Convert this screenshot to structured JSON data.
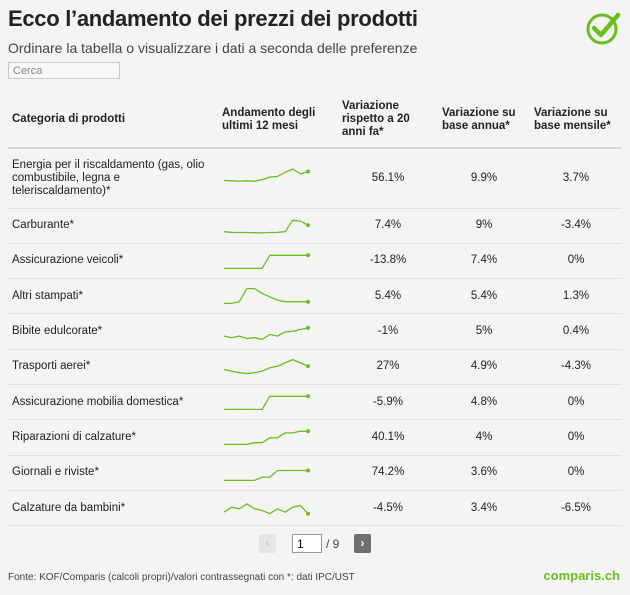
{
  "header": {
    "title": "Ecco l’andamento dei prezzi dei prodotti",
    "subtitle": "Ordinare la tabella o visualizzare i dati a seconda delle preferenze"
  },
  "search": {
    "placeholder": "Cerca",
    "value": ""
  },
  "table": {
    "columns": [
      "Categoria di prodotti",
      "Andamento degli ultimi 12 mesi",
      "Variazione rispetto a 20 anni fa*",
      "Variazione su base annua*",
      "Variazione su base mensile*"
    ],
    "rows": [
      {
        "category": "Energia per il riscaldamento (gas, olio combustibile, legna e teleriscaldamento)*",
        "var20": "56.1%",
        "yearly": "9.9%",
        "monthly": "3.7%",
        "trend": [
          4,
          3.8,
          3.6,
          3.8,
          3.5,
          4.5,
          6,
          6.5,
          9,
          11,
          8,
          9.5
        ]
      },
      {
        "category": "Carburante*",
        "var20": "7.4%",
        "yearly": "9%",
        "monthly": "-3.4%",
        "trend": [
          2,
          1.6,
          1.5,
          1.5,
          1.4,
          1.3,
          1.5,
          1.6,
          2,
          9,
          8.5,
          6
        ]
      },
      {
        "category": "Assicurazione veicoli*",
        "var20": "-13.8%",
        "yearly": "7.4%",
        "monthly": "0%",
        "trend": [
          1,
          1,
          1,
          1,
          1,
          1,
          9,
          9,
          9,
          9,
          9,
          9
        ]
      },
      {
        "category": "Altri stampati*",
        "var20": "5.4%",
        "yearly": "5.4%",
        "monthly": "1.3%",
        "trend": [
          1,
          1,
          2,
          10,
          10,
          7,
          5,
          3,
          2,
          2,
          2,
          2
        ]
      },
      {
        "category": "Bibite edulcorate*",
        "var20": "-1%",
        "yearly": "5%",
        "monthly": "0.4%",
        "trend": [
          3,
          2,
          3,
          1.5,
          2,
          1,
          4,
          3,
          5.5,
          6,
          7,
          8
        ]
      },
      {
        "category": "Trasporti aerei*",
        "var20": "27%",
        "yearly": "4.9%",
        "monthly": "-4.3%",
        "trend": [
          4,
          3,
          2,
          1.5,
          2,
          3,
          5,
          6,
          8,
          10,
          8,
          6
        ]
      },
      {
        "category": "Assicurazione mobilia domestica*",
        "var20": "-5.9%",
        "yearly": "4.8%",
        "monthly": "0%",
        "trend": [
          1,
          1,
          1,
          1,
          1,
          1,
          9,
          9,
          9,
          9,
          9,
          9
        ]
      },
      {
        "category": "Riparazioni di calzature*",
        "var20": "40.1%",
        "yearly": "4%",
        "monthly": "0%",
        "trend": [
          1,
          1,
          1,
          1,
          2,
          2,
          5,
          5,
          8,
          8,
          9,
          9
        ]
      },
      {
        "category": "Giornali e riviste*",
        "var20": "74.2%",
        "yearly": "3.6%",
        "monthly": "0%",
        "trend": [
          1,
          1,
          1,
          1,
          1,
          3,
          3,
          7,
          7,
          7,
          7,
          7
        ]
      },
      {
        "category": "Calzature da bambini*",
        "var20": "-4.5%",
        "yearly": "3.4%",
        "monthly": "-6.5%",
        "trend": [
          3,
          6,
          5,
          8,
          5,
          4,
          2,
          5,
          3,
          6,
          7,
          2
        ]
      }
    ]
  },
  "pagination": {
    "current": "1",
    "total_label": "/ 9",
    "prev_symbol": "‹",
    "next_symbol": "›"
  },
  "footer": {
    "source": "Fonte: KOF/Comparis (calcoli propri)/valori contrassegnati con *: dati IPC/UST",
    "brand": "comparis.ch"
  },
  "colors": {
    "accent": "#6abf1e",
    "text": "#222222",
    "background": "#f4f4f4"
  }
}
